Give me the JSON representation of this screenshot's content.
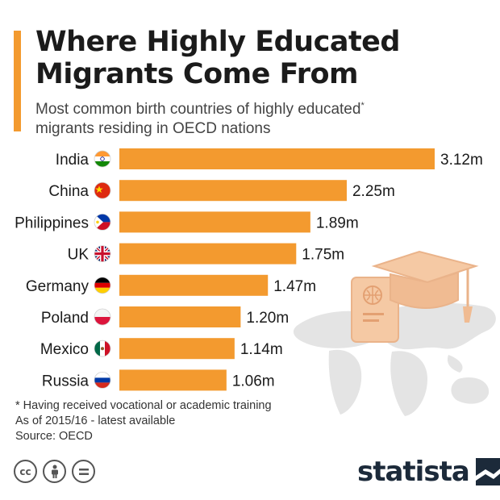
{
  "header": {
    "title_line1": "Where Highly Educated",
    "title_line2": "Migrants Come From",
    "subtitle_line1": "Most common birth countries of highly educated",
    "subtitle_asterisk": "*",
    "subtitle_line2": "migrants residing in OECD nations"
  },
  "chart_data": {
    "type": "bar",
    "orientation": "horizontal",
    "categories": [
      "India",
      "China",
      "Philippines",
      "UK",
      "Germany",
      "Poland",
      "Mexico",
      "Russia"
    ],
    "values": [
      3.12,
      2.25,
      1.89,
      1.75,
      1.47,
      1.2,
      1.14,
      1.06
    ],
    "value_labels": [
      "3.12m",
      "2.25m",
      "1.89m",
      "1.75m",
      "1.47m",
      "1.20m",
      "1.14m",
      "1.06m"
    ],
    "flag_icons": [
      "india-flag-icon",
      "china-flag-icon",
      "philippines-flag-icon",
      "uk-flag-icon",
      "germany-flag-icon",
      "poland-flag-icon",
      "mexico-flag-icon",
      "russia-flag-icon"
    ],
    "unit": "m",
    "xlim": [
      0,
      3.12
    ],
    "bar_color": "#f39a2f",
    "grid": false,
    "legend": "none"
  },
  "footer": {
    "note1": "* Having received vocational or academic training",
    "note2": "As of 2015/16 - latest available",
    "source": "Source: OECD",
    "license_icons": [
      "cc-icon",
      "attribution-icon",
      "no-derivatives-icon"
    ],
    "logo_text": "statista"
  },
  "colors": {
    "accent": "#f39a2f",
    "illustration": "#f5c9a4",
    "map": "#e4e4e4",
    "logo": "#1c2a3a"
  }
}
